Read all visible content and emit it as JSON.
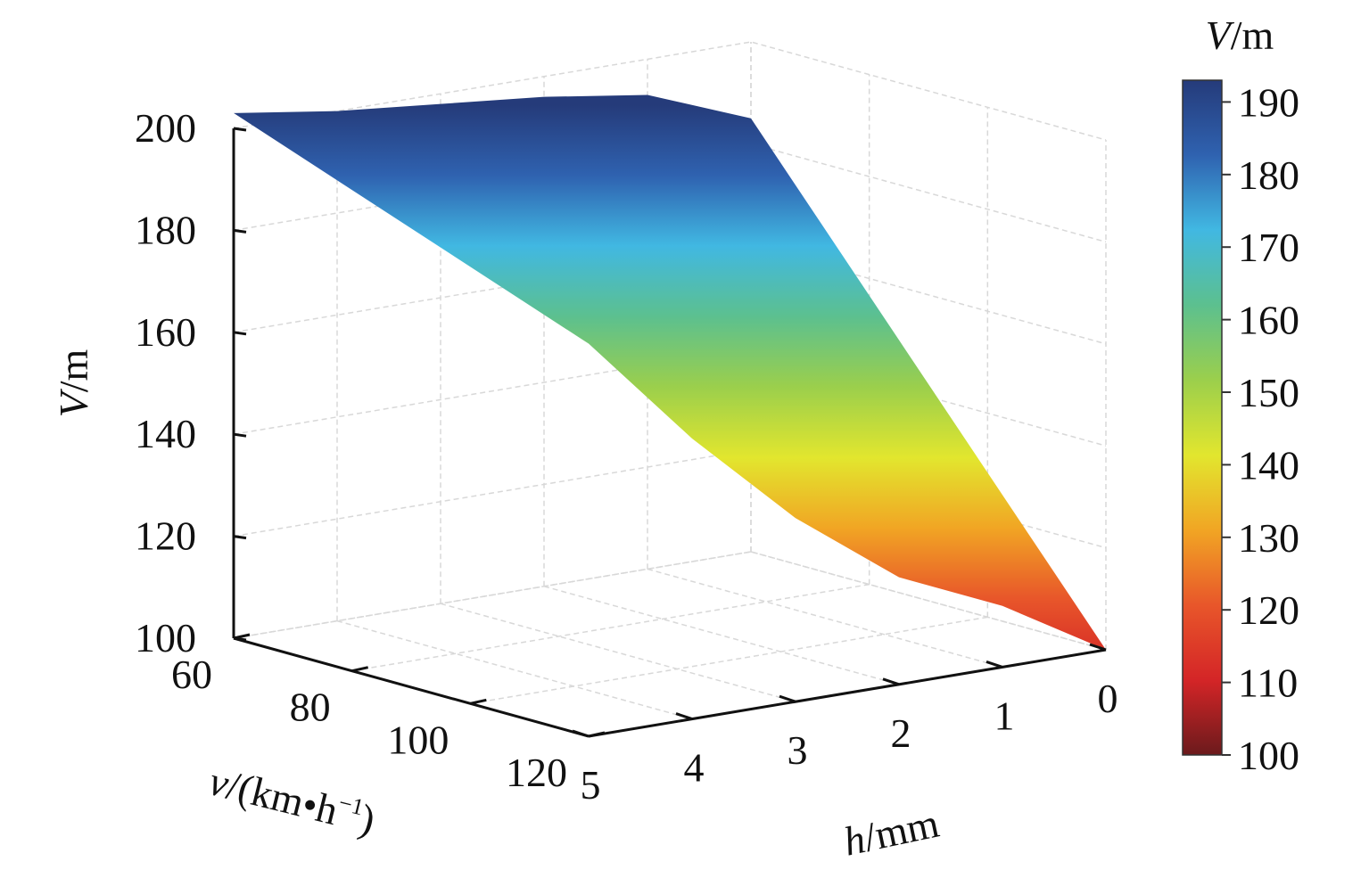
{
  "chart_data": {
    "type": "surface",
    "x_axis": {
      "label_var": "h",
      "label_unit": "/mm",
      "ticks": [
        5,
        4,
        3,
        2,
        1,
        0
      ]
    },
    "y_axis": {
      "label_var": "v",
      "label_unit": "/(km•h",
      "label_sup": "−1",
      "label_close": ")",
      "ticks": [
        60,
        80,
        100,
        120
      ]
    },
    "z_axis": {
      "label_var": "V",
      "label_unit": "/m",
      "ticks": [
        100,
        120,
        140,
        160,
        180,
        200
      ],
      "zlim": [
        100,
        200
      ]
    },
    "colorbar": {
      "title_var": "V",
      "title_unit": "/m",
      "ticks": [
        100,
        110,
        120,
        130,
        140,
        150,
        160,
        170,
        180,
        190
      ],
      "range": [
        100,
        193
      ],
      "colormap": [
        "#6b1a1c",
        "#d42527",
        "#e8562a",
        "#f1a524",
        "#e2e62e",
        "#9bcf4c",
        "#5cc08f",
        "#41b8e2",
        "#2f62b0",
        "#253b7a"
      ]
    },
    "grid": true,
    "surface": {
      "h": [
        0,
        1,
        2,
        3,
        4,
        5
      ],
      "v": [
        60,
        120
      ],
      "V_at_v60": [
        185,
        193,
        196,
        198,
        200,
        203
      ],
      "V_at_v120": [
        100,
        112,
        121,
        136,
        155,
        177
      ]
    }
  }
}
